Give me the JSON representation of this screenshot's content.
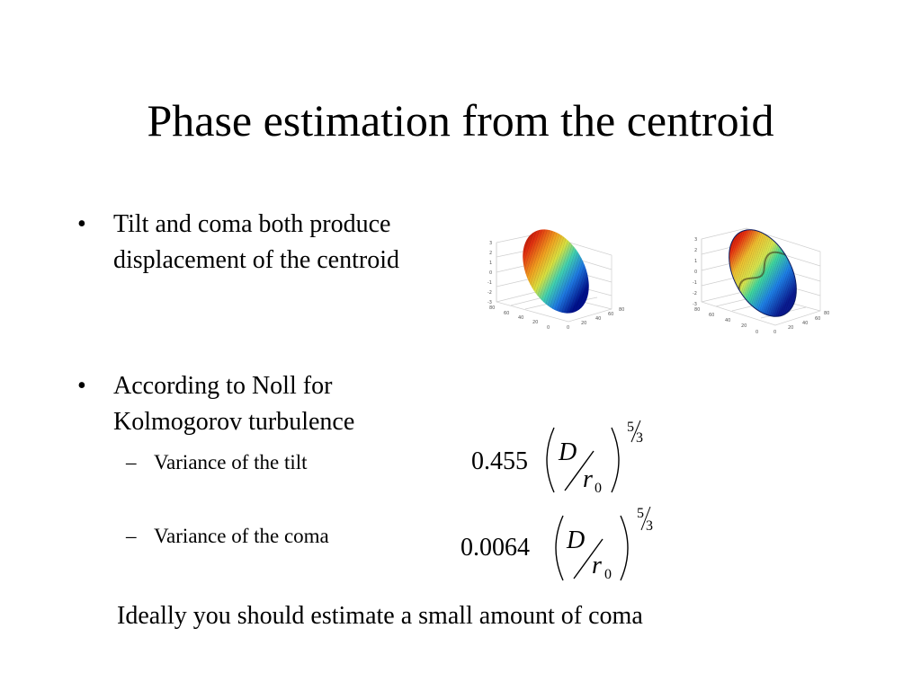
{
  "slide": {
    "title": "Phase estimation from the centroid",
    "bullets": [
      {
        "marker": "•",
        "text": "Tilt and coma both produce displacement of the centroid"
      },
      {
        "marker": "•",
        "text": "According to Noll for Kolmogorov turbulence"
      }
    ],
    "sub_bullets": [
      {
        "marker": "–",
        "text": "Variance of the tilt"
      },
      {
        "marker": "–",
        "text": "Variance of the coma"
      }
    ],
    "formulas": [
      {
        "coefficient": "0.455",
        "numerator": "D",
        "denominator_base": "r",
        "denominator_subscript": "0",
        "exponent_numerator": "5",
        "exponent_denominator": "3"
      },
      {
        "coefficient": "0.0064",
        "numerator": "D",
        "denominator_base": "r",
        "denominator_subscript": "0",
        "exponent_numerator": "5",
        "exponent_denominator": "3"
      }
    ],
    "footer": "Ideally you should estimate a small amount of coma",
    "plots": [
      {
        "name": "tilt-surface-plot",
        "y_ticks": [
          "3",
          "2",
          "1",
          "0",
          "-1",
          "-2",
          "-3"
        ],
        "x_ticks": [
          "0",
          "20",
          "40",
          "60",
          "80"
        ],
        "y_axis_ticks": [
          "80",
          "60",
          "40",
          "20",
          "0"
        ]
      },
      {
        "name": "coma-surface-plot",
        "y_ticks": [
          "3",
          "2",
          "1",
          "0",
          "-1",
          "-2",
          "-3"
        ],
        "x_ticks": [
          "0",
          "20",
          "40",
          "60",
          "80"
        ],
        "y_axis_ticks": [
          "80",
          "60",
          "40",
          "20",
          "0"
        ]
      }
    ]
  }
}
